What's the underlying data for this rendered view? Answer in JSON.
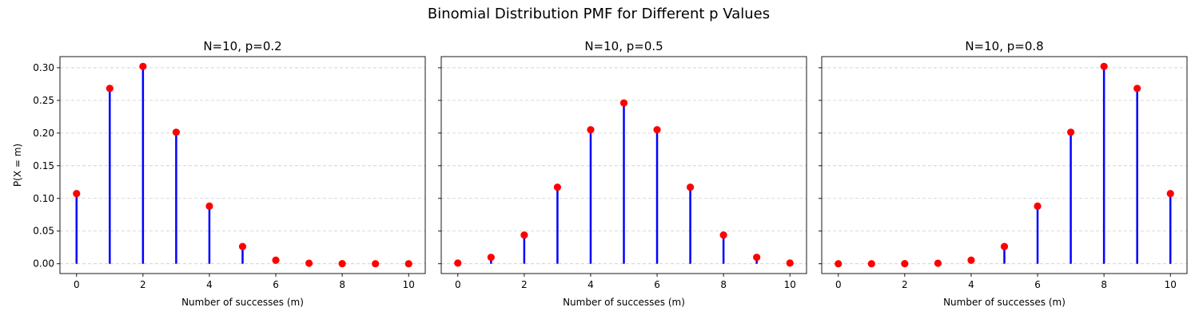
{
  "figure": {
    "suptitle": "Binomial Distribution PMF for Different p Values",
    "colors": {
      "stem": "#0000ff",
      "marker": "#ff0000",
      "grid": "#cccccc"
    }
  },
  "chart_data": [
    {
      "type": "stem",
      "title": "N=10, p=0.2",
      "xlabel": "Number of successes (m)",
      "ylabel": "P(X = m)",
      "x": [
        0,
        1,
        2,
        3,
        4,
        5,
        6,
        7,
        8,
        9,
        10
      ],
      "values": [
        0.1074,
        0.2684,
        0.302,
        0.2013,
        0.0881,
        0.0264,
        0.0055,
        0.0008,
        0.0001,
        0.0,
        0.0
      ],
      "xlim": [
        -0.5,
        10.5
      ],
      "ylim": [
        -0.015,
        0.317
      ],
      "xticks": [
        0,
        2,
        4,
        6,
        8,
        10
      ],
      "yticks": [
        "0.00",
        "0.05",
        "0.10",
        "0.15",
        "0.20",
        "0.25",
        "0.30"
      ],
      "grid": "y-dashed"
    },
    {
      "type": "stem",
      "title": "N=10, p=0.5",
      "xlabel": "Number of successes (m)",
      "ylabel": "",
      "x": [
        0,
        1,
        2,
        3,
        4,
        5,
        6,
        7,
        8,
        9,
        10
      ],
      "values": [
        0.001,
        0.0098,
        0.0439,
        0.1172,
        0.2051,
        0.2461,
        0.2051,
        0.1172,
        0.0439,
        0.0098,
        0.001
      ],
      "xlim": [
        -0.5,
        10.5
      ],
      "ylim": [
        -0.015,
        0.317
      ],
      "xticks": [
        0,
        2,
        4,
        6,
        8,
        10
      ],
      "yticks": [],
      "grid": "y-dashed"
    },
    {
      "type": "stem",
      "title": "N=10, p=0.8",
      "xlabel": "Number of successes (m)",
      "ylabel": "",
      "x": [
        0,
        1,
        2,
        3,
        4,
        5,
        6,
        7,
        8,
        9,
        10
      ],
      "values": [
        0.0,
        0.0,
        0.0001,
        0.0008,
        0.0055,
        0.0264,
        0.0881,
        0.2013,
        0.302,
        0.2684,
        0.1074
      ],
      "xlim": [
        -0.5,
        10.5
      ],
      "ylim": [
        -0.015,
        0.317
      ],
      "xticks": [
        0,
        2,
        4,
        6,
        8,
        10
      ],
      "yticks": [],
      "grid": "y-dashed"
    }
  ]
}
